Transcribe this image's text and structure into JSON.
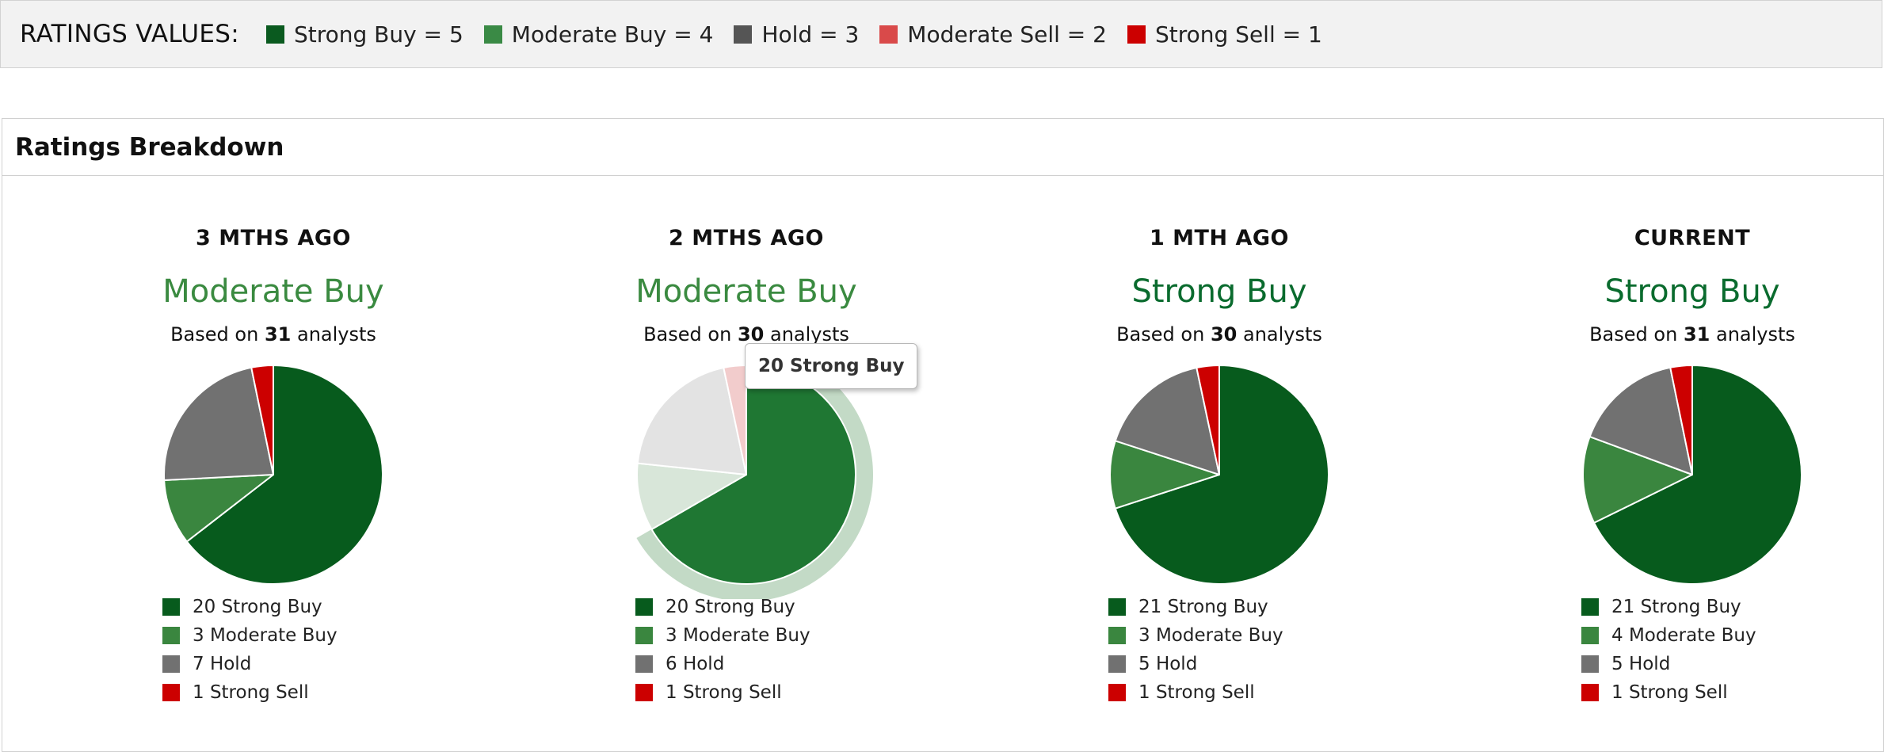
{
  "ratings_values": {
    "title": "RATINGS VALUES:",
    "items": [
      {
        "label": "Strong Buy = 5",
        "color": "#0a5a1f"
      },
      {
        "label": "Moderate Buy = 4",
        "color": "#3a8a45"
      },
      {
        "label": "Hold = 3",
        "color": "#555555"
      },
      {
        "label": "Moderate Sell = 2",
        "color": "#d94a4a"
      },
      {
        "label": "Strong Sell = 1",
        "color": "#cc0000"
      }
    ]
  },
  "panel": {
    "title": "Ratings Breakdown"
  },
  "colors": {
    "strong_buy": "#075b1d",
    "moderate_buy": "#3a863f",
    "hold": "#717171",
    "strong_sell": "#cc0000",
    "rating_moderate": "#3a8a40",
    "rating_strong": "#0a6b2e"
  },
  "tooltip": {
    "text": "20 Strong Buy"
  },
  "chart_data": [
    {
      "type": "pie",
      "title": "3 MTHS AGO",
      "rating": "Moderate Buy",
      "based_prefix": "Based on",
      "analysts": "31",
      "based_suffix": "analysts",
      "slices": [
        {
          "label": "Strong Buy",
          "value": 20
        },
        {
          "label": "Moderate Buy",
          "value": 3
        },
        {
          "label": "Hold",
          "value": 7
        },
        {
          "label": "Strong Sell",
          "value": 1
        }
      ],
      "legend": [
        "20 Strong Buy",
        "3 Moderate Buy",
        "7 Hold",
        "1 Strong Sell"
      ]
    },
    {
      "type": "pie",
      "title": "2 MTHS AGO",
      "rating": "Moderate Buy",
      "based_prefix": "Based on",
      "analysts": "30",
      "based_suffix": "analysts",
      "slices": [
        {
          "label": "Strong Buy",
          "value": 20
        },
        {
          "label": "Moderate Buy",
          "value": 3
        },
        {
          "label": "Hold",
          "value": 6
        },
        {
          "label": "Strong Sell",
          "value": 1
        }
      ],
      "legend": [
        "20 Strong Buy",
        "3 Moderate Buy",
        "6 Hold",
        "1 Strong Sell"
      ],
      "highlighted": "Strong Buy"
    },
    {
      "type": "pie",
      "title": "1 MTH AGO",
      "rating": "Strong Buy",
      "based_prefix": "Based on",
      "analysts": "30",
      "based_suffix": "analysts",
      "slices": [
        {
          "label": "Strong Buy",
          "value": 21
        },
        {
          "label": "Moderate Buy",
          "value": 3
        },
        {
          "label": "Hold",
          "value": 5
        },
        {
          "label": "Strong Sell",
          "value": 1
        }
      ],
      "legend": [
        "21 Strong Buy",
        "3 Moderate Buy",
        "5 Hold",
        "1 Strong Sell"
      ]
    },
    {
      "type": "pie",
      "title": "CURRENT",
      "rating": "Strong Buy",
      "based_prefix": "Based on",
      "analysts": "31",
      "based_suffix": "analysts",
      "slices": [
        {
          "label": "Strong Buy",
          "value": 21
        },
        {
          "label": "Moderate Buy",
          "value": 4
        },
        {
          "label": "Hold",
          "value": 5
        },
        {
          "label": "Strong Sell",
          "value": 1
        }
      ],
      "legend": [
        "21 Strong Buy",
        "4 Moderate Buy",
        "5 Hold",
        "1 Strong Sell"
      ]
    }
  ]
}
